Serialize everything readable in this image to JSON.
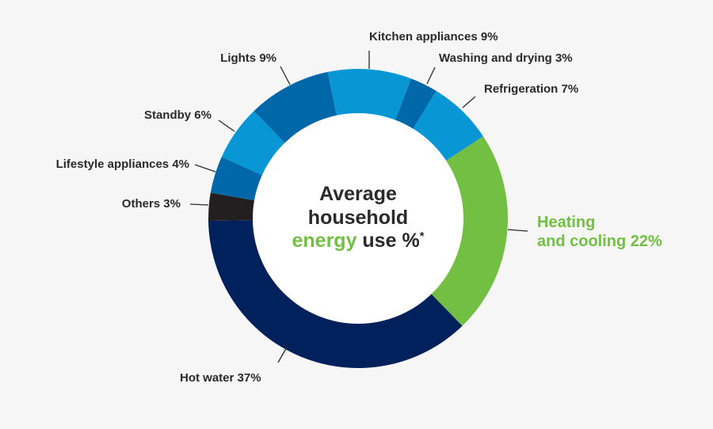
{
  "chart_data": {
    "type": "pie",
    "donut": true,
    "title_lines": [
      "Average",
      "household"
    ],
    "title_highlight": "energy",
    "title_rest": " use %",
    "title_mark": "*",
    "slices": [
      {
        "label": "Washing and drying 3%",
        "value": 3,
        "color": "#0068a8"
      },
      {
        "label": "Refrigeration 7%",
        "value": 7,
        "color": "#0996d4"
      },
      {
        "label": "Heating",
        "label2": "and cooling 22%",
        "value": 22,
        "color": "#72bf44"
      },
      {
        "label": "Hot water 37%",
        "value": 37,
        "color": "#00215b"
      },
      {
        "label": "Others 3%",
        "value": 3,
        "color": "#231f20"
      },
      {
        "label": "Lifestyle appliances 4%",
        "value": 4,
        "color": "#0068a8"
      },
      {
        "label": "Standby 6%",
        "value": 6,
        "color": "#0996d4"
      },
      {
        "label": "Lights 9%",
        "value": 9,
        "color": "#0068a8"
      },
      {
        "label": "Kitchen appliances 9%",
        "value": 9,
        "color": "#0996d4"
      }
    ],
    "highlight_color": "#72bf44"
  }
}
